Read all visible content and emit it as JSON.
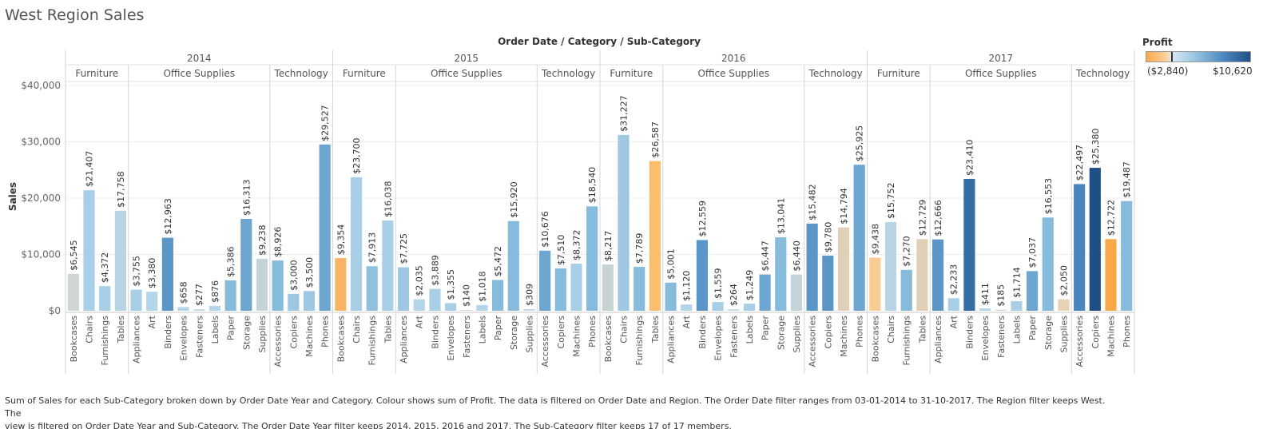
{
  "page": {
    "title": "West Region Sales",
    "caption_line1": "Sum of Sales for each Sub-Category broken down by Order Date Year and Category.  Colour shows sum of Profit. The data is filtered on Order Date and Region. The Order Date filter ranges from 03-01-2014 to 31-10-2017. The Region filter keeps West. The",
    "caption_line2": "view is filtered on Order Date Year and Sub-Category. The Order Date Year filter keeps 2014, 2015, 2016 and 2017. The Sub-Category filter keeps 17 of 17 members."
  },
  "legend": {
    "title": "Profit",
    "min_label": "($2,840)",
    "max_label": "$10,620",
    "min_value": -2840,
    "max_value": 10620
  },
  "colors": {
    "orange_dark": "#f9a848",
    "orange_light": "#fbd19a",
    "tan": "#e0d0b8",
    "gray": "#c7d2d3",
    "blue_light": "#a9cfe6",
    "blue_mid": "#86bbdc",
    "blue_dark": "#4a86be",
    "blue_darkest": "#1f4f85"
  },
  "chart_data": {
    "type": "bar",
    "title": "Order Date / Category / Sub-Category",
    "ylabel": "Sales",
    "ylim": [
      0,
      40000
    ],
    "yticks": [
      0,
      10000,
      20000,
      30000,
      40000
    ],
    "ytick_labels": [
      "$0",
      "$10,000",
      "$20,000",
      "$30,000",
      "$40,000"
    ],
    "grid": true,
    "legend_position": "top-right",
    "groups": [
      {
        "year": "2014",
        "categories": [
          {
            "name": "Furniture",
            "items": [
              {
                "sub": "Bookcases",
                "value": 6545,
                "label": "$6,545",
                "color": "#cfd6d4"
              },
              {
                "sub": "Chairs",
                "value": 21407,
                "label": "$21,407",
                "color": "#a9cfe6"
              },
              {
                "sub": "Furnishings",
                "value": 4372,
                "label": "$4,372",
                "color": "#a9cfe6"
              },
              {
                "sub": "Tables",
                "value": 17758,
                "label": "$17,758",
                "color": "#b8d5e6"
              }
            ]
          },
          {
            "name": "Office Supplies",
            "items": [
              {
                "sub": "Appliances",
                "value": 3755,
                "label": "$3,755",
                "color": "#a9cfe6"
              },
              {
                "sub": "Art",
                "value": 3380,
                "label": "$3,380",
                "color": "#b4d4e7"
              },
              {
                "sub": "Binders",
                "value": 12963,
                "label": "$12,963",
                "color": "#5b96c8"
              },
              {
                "sub": "Envelopes",
                "value": 658,
                "label": "$658",
                "color": "#b4d4e7"
              },
              {
                "sub": "Fasteners",
                "value": 277,
                "label": "$277",
                "color": "#c7d8e0"
              },
              {
                "sub": "Labels",
                "value": 876,
                "label": "$876",
                "color": "#b4d4e7"
              },
              {
                "sub": "Paper",
                "value": 5386,
                "label": "$5,386",
                "color": "#86bbdc"
              },
              {
                "sub": "Storage",
                "value": 16313,
                "label": "$16,313",
                "color": "#6ea6d2"
              },
              {
                "sub": "Supplies",
                "value": 9238,
                "label": "$9,238",
                "color": "#c3d3d8"
              }
            ]
          },
          {
            "name": "Technology",
            "items": [
              {
                "sub": "Accessories",
                "value": 8926,
                "label": "$8,926",
                "color": "#86bbdc"
              },
              {
                "sub": "Copiers",
                "value": 3000,
                "label": "$3,000",
                "color": "#9ec8e2"
              },
              {
                "sub": "Machines",
                "value": 3500,
                "label": "$3,500",
                "color": "#9ec8e2"
              },
              {
                "sub": "Phones",
                "value": 29527,
                "label": "$29,527",
                "color": "#6ea6d2"
              }
            ]
          }
        ]
      },
      {
        "year": "2015",
        "categories": [
          {
            "name": "Furniture",
            "items": [
              {
                "sub": "Bookcases",
                "value": 9354,
                "label": "$9,354",
                "color": "#f9b564"
              },
              {
                "sub": "Chairs",
                "value": 23700,
                "label": "$23,700",
                "color": "#a9cfe6"
              },
              {
                "sub": "Furnishings",
                "value": 7913,
                "label": "$7,913",
                "color": "#8fc0de"
              },
              {
                "sub": "Tables",
                "value": 16038,
                "label": "$16,038",
                "color": "#a9cfe6"
              }
            ]
          },
          {
            "name": "Office Supplies",
            "items": [
              {
                "sub": "Appliances",
                "value": 7725,
                "label": "$7,725",
                "color": "#9ec8e2"
              },
              {
                "sub": "Art",
                "value": 2035,
                "label": "$2,035",
                "color": "#b4d4e7"
              },
              {
                "sub": "Binders",
                "value": 3889,
                "label": "$3,889",
                "color": "#a9cfe6"
              },
              {
                "sub": "Envelopes",
                "value": 1355,
                "label": "$1,355",
                "color": "#a9cfe6"
              },
              {
                "sub": "Fasteners",
                "value": 140,
                "label": "$140",
                "color": "#c7d8e0"
              },
              {
                "sub": "Labels",
                "value": 1018,
                "label": "$1,018",
                "color": "#b4d4e7"
              },
              {
                "sub": "Paper",
                "value": 5472,
                "label": "$5,472",
                "color": "#86bbdc"
              },
              {
                "sub": "Storage",
                "value": 15920,
                "label": "$15,920",
                "color": "#86bbdc"
              },
              {
                "sub": "Supplies",
                "value": 309,
                "label": "$309",
                "color": "#c7d8e0"
              }
            ]
          },
          {
            "name": "Technology",
            "items": [
              {
                "sub": "Accessories",
                "value": 10676,
                "label": "$10,676",
                "color": "#6ea6d2"
              },
              {
                "sub": "Copiers",
                "value": 7510,
                "label": "$7,510",
                "color": "#86bbdc"
              },
              {
                "sub": "Machines",
                "value": 8372,
                "label": "$8,372",
                "color": "#a9cfe6"
              },
              {
                "sub": "Phones",
                "value": 18540,
                "label": "$18,540",
                "color": "#86bbdc"
              }
            ]
          }
        ]
      },
      {
        "year": "2016",
        "categories": [
          {
            "name": "Furniture",
            "items": [
              {
                "sub": "Bookcases",
                "value": 8217,
                "label": "$8,217",
                "color": "#c7d2d3"
              },
              {
                "sub": "Chairs",
                "value": 31227,
                "label": "$31,227",
                "color": "#9ec8e2"
              },
              {
                "sub": "Furnishings",
                "value": 7789,
                "label": "$7,789",
                "color": "#86bbdc"
              },
              {
                "sub": "Tables",
                "value": 26587,
                "label": "$26,587",
                "color": "#fbbd6e"
              }
            ]
          },
          {
            "name": "Office Supplies",
            "items": [
              {
                "sub": "Appliances",
                "value": 5001,
                "label": "$5,001",
                "color": "#86bbdc"
              },
              {
                "sub": "Art",
                "value": 1120,
                "label": "$1,120",
                "color": "#b4d4e7"
              },
              {
                "sub": "Binders",
                "value": 12559,
                "label": "$12,559",
                "color": "#5b96c8"
              },
              {
                "sub": "Envelopes",
                "value": 1559,
                "label": "$1,559",
                "color": "#a9cfe6"
              },
              {
                "sub": "Fasteners",
                "value": 264,
                "label": "$264",
                "color": "#c7d8e0"
              },
              {
                "sub": "Labels",
                "value": 1249,
                "label": "$1,249",
                "color": "#a9cfe6"
              },
              {
                "sub": "Paper",
                "value": 6447,
                "label": "$6,447",
                "color": "#6ea6d2"
              },
              {
                "sub": "Storage",
                "value": 13041,
                "label": "$13,041",
                "color": "#86bbdc"
              },
              {
                "sub": "Supplies",
                "value": 6440,
                "label": "$6,440",
                "color": "#c3d3d8"
              }
            ]
          },
          {
            "name": "Technology",
            "items": [
              {
                "sub": "Accessories",
                "value": 15482,
                "label": "$15,482",
                "color": "#5b96c8"
              },
              {
                "sub": "Copiers",
                "value": 9780,
                "label": "$9,780",
                "color": "#5b96c8"
              },
              {
                "sub": "Machines",
                "value": 14794,
                "label": "$14,794",
                "color": "#e0d0b8"
              },
              {
                "sub": "Phones",
                "value": 25925,
                "label": "$25,925",
                "color": "#6ea6d2"
              }
            ]
          }
        ]
      },
      {
        "year": "2017",
        "categories": [
          {
            "name": "Furniture",
            "items": [
              {
                "sub": "Bookcases",
                "value": 9438,
                "label": "$9,438",
                "color": "#f9cc94"
              },
              {
                "sub": "Chairs",
                "value": 15752,
                "label": "$15,752",
                "color": "#b8d5e6"
              },
              {
                "sub": "Furnishings",
                "value": 7270,
                "label": "$7,270",
                "color": "#86bbdc"
              },
              {
                "sub": "Tables",
                "value": 12729,
                "label": "$12,729",
                "color": "#e0d0b8"
              }
            ]
          },
          {
            "name": "Office Supplies",
            "items": [
              {
                "sub": "Appliances",
                "value": 12666,
                "label": "$12,666",
                "color": "#5b96c8"
              },
              {
                "sub": "Art",
                "value": 2233,
                "label": "$2,233",
                "color": "#a9cfe6"
              },
              {
                "sub": "Binders",
                "value": 23410,
                "label": "$23,410",
                "color": "#356ea4"
              },
              {
                "sub": "Envelopes",
                "value": 411,
                "label": "$411",
                "color": "#b4d4e7"
              },
              {
                "sub": "Fasteners",
                "value": 185,
                "label": "$185",
                "color": "#c7d8e0"
              },
              {
                "sub": "Labels",
                "value": 1714,
                "label": "$1,714",
                "color": "#a9cfe6"
              },
              {
                "sub": "Paper",
                "value": 7037,
                "label": "$7,037",
                "color": "#6ea6d2"
              },
              {
                "sub": "Storage",
                "value": 16553,
                "label": "$16,553",
                "color": "#86bbdc"
              },
              {
                "sub": "Supplies",
                "value": 2050,
                "label": "$2,050",
                "color": "#e6d2b4"
              }
            ]
          },
          {
            "name": "Technology",
            "items": [
              {
                "sub": "Accessories",
                "value": 22497,
                "label": "$22,497",
                "color": "#4a86be"
              },
              {
                "sub": "Copiers",
                "value": 25380,
                "label": "$25,380",
                "color": "#1f4f85"
              },
              {
                "sub": "Machines",
                "value": 12722,
                "label": "$12,722",
                "color": "#f9a848"
              },
              {
                "sub": "Phones",
                "value": 19487,
                "label": "$19,487",
                "color": "#86bbdc"
              }
            ]
          }
        ]
      }
    ]
  }
}
